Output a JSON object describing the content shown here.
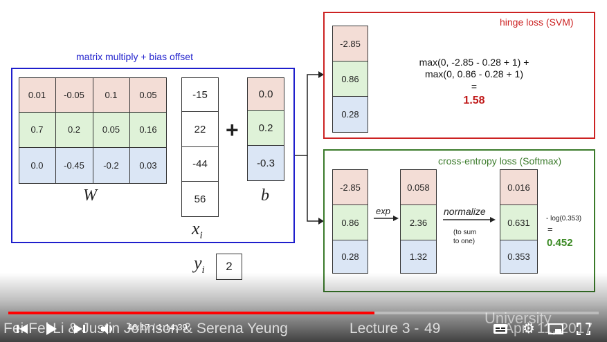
{
  "slide": {
    "matrix_title": "matrix multiply + bias offset",
    "W_rows": [
      [
        "0.01",
        "-0.05",
        "0.1",
        "0.05"
      ],
      [
        "0.7",
        "0.2",
        "0.05",
        "0.16"
      ],
      [
        "0.0",
        "-0.45",
        "-0.2",
        "0.03"
      ]
    ],
    "W_label": "W",
    "x_values": [
      "-15",
      "22",
      "-44",
      "56"
    ],
    "x_label": "x",
    "x_sub": "i",
    "plus": "+",
    "b_values": [
      "0.0",
      "0.2",
      "-0.3"
    ],
    "b_label": "b",
    "y_label": "y",
    "y_sub": "i",
    "y_value": "2",
    "hinge_title": "hinge loss (SVM)",
    "hinge_scores": [
      "-2.85",
      "0.86",
      "0.28"
    ],
    "hinge_line1": "max(0, -2.85 - 0.28 + 1) +",
    "hinge_line2": "max(0, 0.86 - 0.28 + 1)",
    "hinge_eq": "=",
    "hinge_result": "1.58",
    "ce_title": "cross-entropy loss (Softmax)",
    "ce_scores": [
      "-2.85",
      "0.86",
      "0.28"
    ],
    "exp_label": "exp",
    "exp_values": [
      "0.058",
      "2.36",
      "1.32"
    ],
    "normalize_label": "normalize",
    "normalize_sub1": "(to sum",
    "normalize_sub2": "to one)",
    "probs": [
      "0.016",
      "0.631",
      "0.353"
    ],
    "neglog": "- log(0.353)",
    "ce_eq": "=",
    "ce_result": "0.452"
  },
  "player": {
    "time": "46:17 / 1:14:39",
    "footer_left": "Fei-Fei Li & Justin Johnson & Serena Yeung",
    "footer_lecture": "Lecture 3 -",
    "footer_page": "49",
    "footer_right": "April 11, 2017",
    "watermark": "University",
    "progress": 0.62
  },
  "colors": {
    "matrix_border": "#1f1fcc",
    "hinge_border": "#cc2222",
    "ce_border": "#3a7a2a",
    "hinge_result": "#c01818",
    "ce_result": "#3b8a24",
    "progress": "#ff0000"
  }
}
